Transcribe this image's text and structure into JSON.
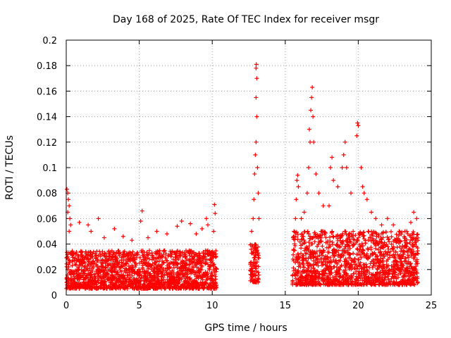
{
  "chart_data": {
    "type": "scatter",
    "title": "Day 168 of 2025, Rate Of TEC Index for receiver msgr",
    "xlabel": "GPS time / hours",
    "ylabel": "ROTI / TECUs",
    "xlim": [
      0,
      25
    ],
    "ylim": [
      0,
      0.2
    ],
    "xticks": [
      0,
      5,
      10,
      15,
      20,
      25
    ],
    "yticks": [
      0,
      0.02,
      0.04,
      0.06,
      0.08,
      0.1,
      0.12,
      0.14,
      0.16,
      0.18,
      0.2
    ],
    "xtick_labels": [
      "0",
      "5",
      "10",
      "15",
      "20",
      "25"
    ],
    "ytick_labels": [
      "0",
      "0.02",
      "0.04",
      "0.06",
      "0.08",
      "0.1",
      "0.12",
      "0.14",
      "0.16",
      "0.18",
      "0.2"
    ],
    "grid": true,
    "marker": "+",
    "color": "#ff0000",
    "series": [
      {
        "name": "ROTI",
        "dense_bands": [
          {
            "x_range": [
              0,
              10.3
            ],
            "y_range": [
              0.005,
              0.035
            ]
          },
          {
            "x_range": [
              12.6,
              13.2
            ],
            "y_range": [
              0.01,
              0.04
            ]
          },
          {
            "x_range": [
              15.5,
              24.1
            ],
            "y_range": [
              0.008,
              0.05
            ]
          }
        ],
        "points": [
          [
            0.05,
            0.083
          ],
          [
            0.1,
            0.08
          ],
          [
            0.15,
            0.075
          ],
          [
            0.2,
            0.07
          ],
          [
            0.1,
            0.065
          ],
          [
            0.25,
            0.06
          ],
          [
            0.3,
            0.055
          ],
          [
            0.2,
            0.05
          ],
          [
            0.9,
            0.057
          ],
          [
            1.5,
            0.055
          ],
          [
            1.7,
            0.05
          ],
          [
            2.2,
            0.06
          ],
          [
            2.6,
            0.045
          ],
          [
            3.3,
            0.052
          ],
          [
            3.9,
            0.046
          ],
          [
            4.5,
            0.043
          ],
          [
            5.2,
            0.066
          ],
          [
            5.1,
            0.058
          ],
          [
            5.6,
            0.045
          ],
          [
            6.2,
            0.05
          ],
          [
            6.9,
            0.048
          ],
          [
            7.6,
            0.054
          ],
          [
            7.9,
            0.058
          ],
          [
            8.5,
            0.056
          ],
          [
            8.9,
            0.048
          ],
          [
            9.3,
            0.052
          ],
          [
            9.6,
            0.06
          ],
          [
            9.7,
            0.055
          ],
          [
            10.15,
            0.071
          ],
          [
            10.2,
            0.064
          ],
          [
            10.1,
            0.05
          ],
          [
            12.7,
            0.05
          ],
          [
            12.8,
            0.06
          ],
          [
            12.85,
            0.075
          ],
          [
            12.9,
            0.095
          ],
          [
            12.95,
            0.11
          ],
          [
            13.0,
            0.12
          ],
          [
            13.05,
            0.14
          ],
          [
            13.0,
            0.155
          ],
          [
            13.05,
            0.17
          ],
          [
            13.0,
            0.178
          ],
          [
            13.02,
            0.181
          ],
          [
            13.1,
            0.1
          ],
          [
            13.15,
            0.08
          ],
          [
            13.2,
            0.06
          ],
          [
            15.6,
            0.05
          ],
          [
            15.7,
            0.06
          ],
          [
            15.75,
            0.075
          ],
          [
            15.8,
            0.09
          ],
          [
            15.85,
            0.094
          ],
          [
            15.9,
            0.085
          ],
          [
            16.1,
            0.06
          ],
          [
            16.3,
            0.065
          ],
          [
            16.5,
            0.08
          ],
          [
            16.6,
            0.1
          ],
          [
            16.7,
            0.12
          ],
          [
            16.65,
            0.13
          ],
          [
            16.75,
            0.145
          ],
          [
            16.8,
            0.155
          ],
          [
            16.85,
            0.163
          ],
          [
            16.9,
            0.14
          ],
          [
            16.95,
            0.12
          ],
          [
            17.1,
            0.095
          ],
          [
            17.3,
            0.08
          ],
          [
            17.6,
            0.07
          ],
          [
            18.0,
            0.07
          ],
          [
            18.1,
            0.1
          ],
          [
            18.2,
            0.108
          ],
          [
            18.3,
            0.09
          ],
          [
            18.6,
            0.085
          ],
          [
            18.9,
            0.1
          ],
          [
            19.0,
            0.11
          ],
          [
            19.1,
            0.12
          ],
          [
            19.2,
            0.1
          ],
          [
            19.5,
            0.08
          ],
          [
            19.9,
            0.125
          ],
          [
            19.95,
            0.135
          ],
          [
            20.0,
            0.133
          ],
          [
            20.2,
            0.1
          ],
          [
            20.3,
            0.085
          ],
          [
            20.4,
            0.08
          ],
          [
            20.6,
            0.075
          ],
          [
            20.9,
            0.065
          ],
          [
            21.2,
            0.06
          ],
          [
            21.6,
            0.055
          ],
          [
            22.0,
            0.06
          ],
          [
            22.4,
            0.055
          ],
          [
            22.8,
            0.05
          ],
          [
            23.2,
            0.05
          ],
          [
            23.6,
            0.057
          ],
          [
            23.8,
            0.065
          ],
          [
            24.0,
            0.06
          ]
        ]
      }
    ]
  }
}
